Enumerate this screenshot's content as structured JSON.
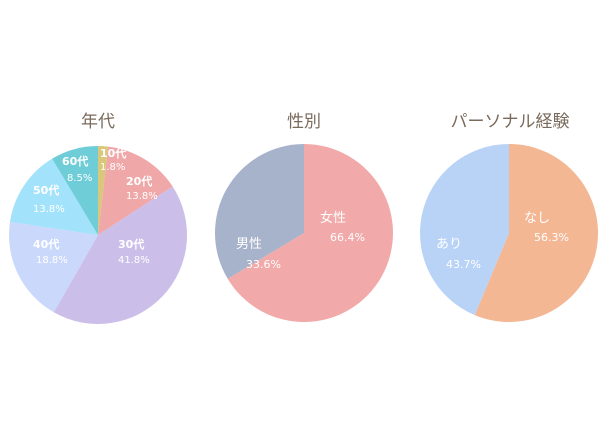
{
  "chart_data": [
    {
      "type": "pie",
      "title": "年代",
      "labels": [
        "10代",
        "20代",
        "30代",
        "40代",
        "50代",
        "60代"
      ],
      "values": [
        1.8,
        13.8,
        41.8,
        18.8,
        13.8,
        8.5
      ],
      "value_labels": [
        "1.8%",
        "13.8%",
        "41.8%",
        "18.8%",
        "13.8%",
        "8.5%"
      ],
      "colors": [
        "#d9c77a",
        "#f0a7a8",
        "#cbbfe9",
        "#c9d8fb",
        "#a2e2fb",
        "#6fcdd7"
      ]
    },
    {
      "type": "pie",
      "title": "性別",
      "labels": [
        "女性",
        "男性"
      ],
      "values": [
        66.4,
        33.6
      ],
      "value_labels": [
        "66.4%",
        "33.6%"
      ],
      "colors": [
        "#f2a9a9",
        "#a7b2cb"
      ]
    },
    {
      "type": "pie",
      "title": "パーソナル経験",
      "labels": [
        "なし",
        "あり"
      ],
      "values": [
        56.3,
        43.7
      ],
      "value_labels": [
        "56.3%",
        "43.7%"
      ],
      "colors": [
        "#f4b794",
        "#b9d3f6"
      ]
    }
  ]
}
